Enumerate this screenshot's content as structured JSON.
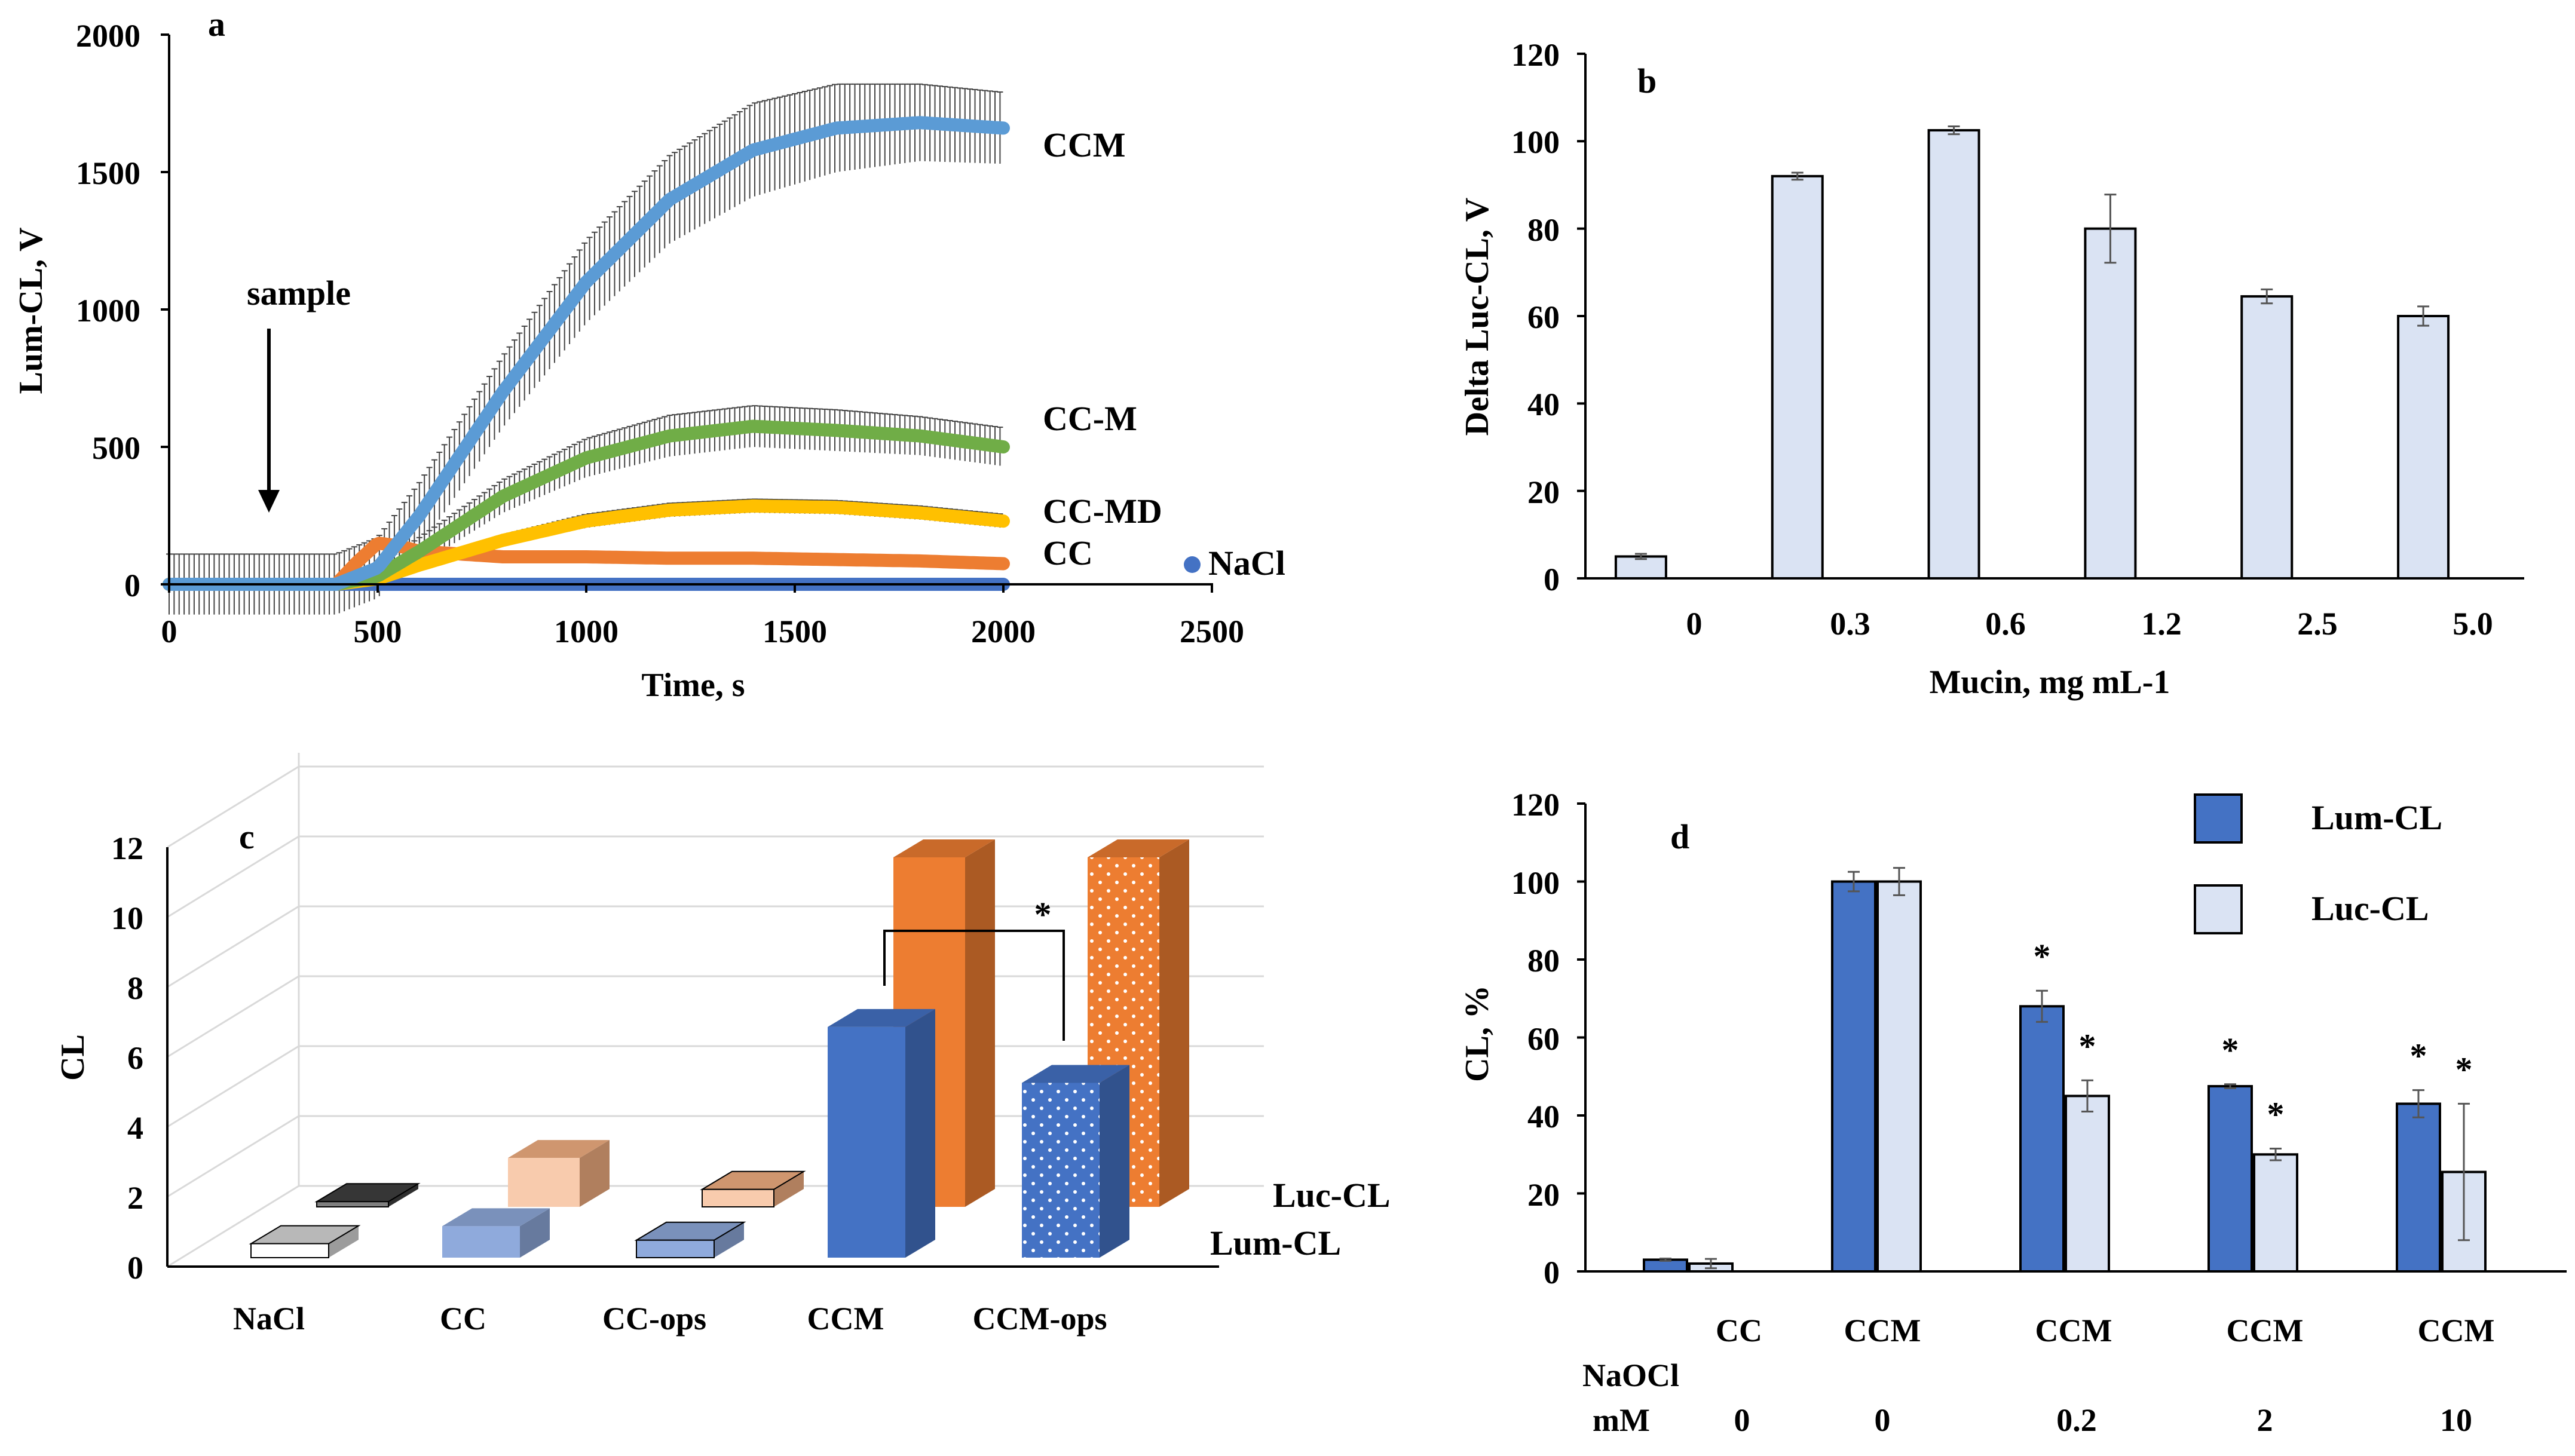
{
  "colors": {
    "ccm": "#5b9bd5",
    "cc_m": "#70ad47",
    "cc_md": "#ffc000",
    "cc": "#ed7d31",
    "nacl": "#4472c4",
    "lum": "#4472c4",
    "luc": "#dae3f3",
    "lum_dark": "#2f5597",
    "luc_orange": "#ed7d31"
  },
  "chart_data": [
    {
      "type": "line",
      "panel": "a",
      "xlabel": "Time, s",
      "ylabel": "Lum-CL, V",
      "xlim": [
        0,
        2500
      ],
      "ylim": [
        0,
        2000
      ],
      "xticks": [
        "0",
        "500",
        "1000",
        "1500",
        "2000",
        "2500"
      ],
      "yticks": [
        "0",
        "500",
        "1000",
        "1500",
        "2000"
      ],
      "annotation": "sample",
      "annotation_x": 240,
      "series": [
        {
          "name": "CCM",
          "color": "#5b9bd5",
          "x": [
            0,
            400,
            500,
            600,
            800,
            1000,
            1200,
            1400,
            1600,
            1800,
            2000
          ],
          "y": [
            0,
            0,
            60,
            250,
            700,
            1100,
            1400,
            1580,
            1660,
            1680,
            1660
          ],
          "err": [
            110,
            110,
            110,
            120,
            130,
            150,
            160,
            170,
            160,
            140,
            130
          ]
        },
        {
          "name": "CC-M",
          "color": "#70ad47",
          "x": [
            0,
            400,
            500,
            600,
            800,
            1000,
            1200,
            1400,
            1600,
            1800,
            2000
          ],
          "y": [
            0,
            0,
            30,
            120,
            320,
            460,
            540,
            575,
            560,
            540,
            500
          ],
          "err": [
            0,
            0,
            40,
            50,
            60,
            70,
            75,
            75,
            75,
            70,
            70
          ]
        },
        {
          "name": "CC-MD",
          "color": "#ffc000",
          "x": [
            0,
            400,
            500,
            600,
            800,
            1000,
            1200,
            1400,
            1600,
            1800,
            2000
          ],
          "y": [
            0,
            0,
            20,
            70,
            160,
            230,
            270,
            285,
            280,
            260,
            230
          ],
          "err": [
            0,
            0,
            10,
            15,
            20,
            25,
            25,
            25,
            25,
            25,
            25
          ]
        },
        {
          "name": "CC",
          "color": "#ed7d31",
          "x": [
            0,
            400,
            450,
            500,
            550,
            600,
            800,
            1000,
            1200,
            1400,
            1600,
            1800,
            2000
          ],
          "y": [
            0,
            0,
            80,
            150,
            140,
            120,
            100,
            100,
            95,
            95,
            90,
            85,
            75
          ],
          "err": [
            0,
            0,
            5,
            5,
            5,
            5,
            5,
            5,
            5,
            5,
            5,
            5,
            5
          ]
        },
        {
          "name": "NaCl",
          "color": "#4472c4",
          "x": [
            0,
            2000
          ],
          "y": [
            0,
            0
          ],
          "err": [
            0,
            0
          ]
        }
      ]
    },
    {
      "type": "bar",
      "panel": "b",
      "xlabel": "Mucin, mg mL-1",
      "ylabel": "Delta Luc-CL, V",
      "ylim": [
        0,
        120
      ],
      "yticks": [
        "0",
        "20",
        "40",
        "60",
        "80",
        "100",
        "120"
      ],
      "categories": [
        "0",
        "0.3",
        "0.6",
        "1.2",
        "2.5",
        "5.0"
      ],
      "values": [
        5,
        92,
        102.5,
        80,
        64.5,
        60
      ],
      "err": [
        0.6,
        0.8,
        0.9,
        7.8,
        1.6,
        2.2
      ]
    },
    {
      "type": "bar",
      "panel": "c",
      "ylabel": "CL",
      "ylim": [
        0,
        12
      ],
      "yticks": [
        "0",
        "2",
        "4",
        "6",
        "8",
        "10",
        "12"
      ],
      "categories": [
        "NaCl",
        "CC",
        "CC-ops",
        "CCM",
        "CCM-ops"
      ],
      "series": [
        {
          "name": "Lum-CL",
          "values": [
            0.4,
            0.9,
            0.5,
            6.6,
            5.0
          ]
        },
        {
          "name": "Luc-CL",
          "values": [
            0.15,
            1.4,
            0.5,
            10.0,
            10.0
          ]
        }
      ],
      "significance": "*"
    },
    {
      "type": "bar",
      "panel": "d",
      "ylabel": "CL, %",
      "ylim": [
        0,
        120
      ],
      "yticks": [
        "0",
        "20",
        "40",
        "60",
        "80",
        "100",
        "120"
      ],
      "categories": [
        "CC",
        "CCM",
        "CCM",
        "CCM",
        "CCM"
      ],
      "row_label_1": "NaOCl",
      "row_label_2": "mM",
      "naocl_mM": [
        "0",
        "0",
        "0.2",
        "2",
        "10"
      ],
      "series": [
        {
          "name": "Lum-CL",
          "values": [
            3,
            100,
            68,
            47.5,
            43
          ],
          "err": [
            0.3,
            2.5,
            4,
            0.5,
            3.5
          ],
          "sig": [
            "",
            "",
            "*",
            "*",
            "*"
          ]
        },
        {
          "name": "Luc-CL",
          "values": [
            2,
            100,
            45,
            30,
            25.5
          ],
          "err": [
            1.2,
            3.5,
            4,
            1.5,
            17.5
          ],
          "sig": [
            "",
            "",
            "*",
            "*",
            "*"
          ]
        }
      ]
    }
  ],
  "panel_letters": [
    "a",
    "b",
    "c",
    "d"
  ]
}
